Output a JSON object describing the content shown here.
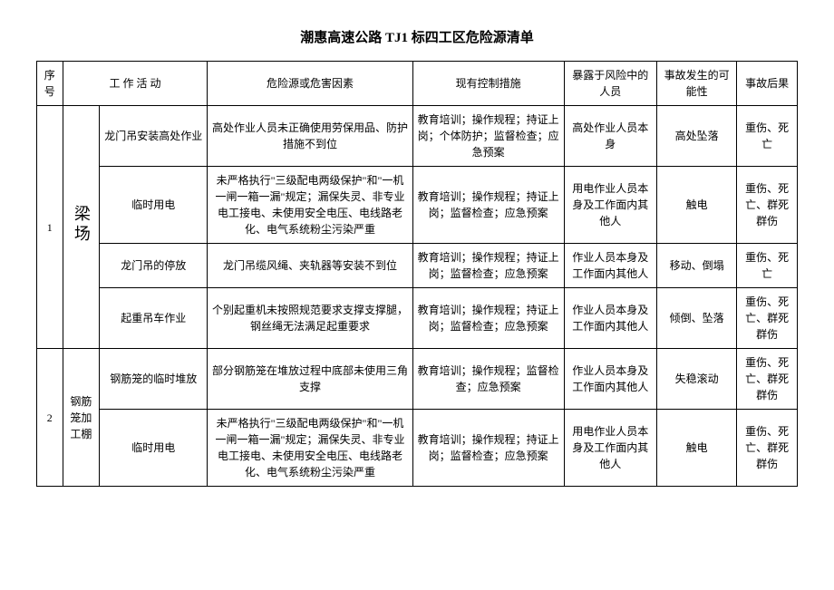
{
  "title": "潮惠高速公路 TJ1 标四工区危险源清单",
  "headers": {
    "seq": "序号",
    "activity": "工 作 活 动",
    "hazard": "危险源或危害因素",
    "control": "现有控制措施",
    "exposed": "暴露于风险中的人员",
    "possibility": "事故发生的可能性",
    "consequence": "事故后果"
  },
  "groups": [
    {
      "seq": "1",
      "category": "梁场",
      "rows": [
        {
          "activity": "龙门吊安装高处作业",
          "hazard": "高处作业人员未正确使用劳保用品、防护措施不到位",
          "control": "教育培训；操作规程；持证上岗；个体防护；监督检查；应急预案",
          "exposed": "高处作业人员本身",
          "possibility": "高处坠落",
          "consequence": "重伤、死亡"
        },
        {
          "activity": "临时用电",
          "hazard": "未严格执行\"三级配电两级保护\"和\"一机一闸一箱一漏\"规定；漏保失灵、非专业电工接电、未使用安全电压、电线路老化、电气系统粉尘污染严重",
          "control": "教育培训；操作规程；持证上岗；监督检查；应急预案",
          "exposed": "用电作业人员本身及工作面内其他人",
          "possibility": "触电",
          "consequence": "重伤、死亡、群死群伤"
        },
        {
          "activity": "龙门吊的停放",
          "hazard": "龙门吊缆风绳、夹轨器等安装不到位",
          "control": "教育培训；操作规程；持证上岗；监督检查；应急预案",
          "exposed": "作业人员本身及工作面内其他人",
          "possibility": "移动、倒塌",
          "consequence": "重伤、死亡"
        },
        {
          "activity": "起重吊车作业",
          "hazard": "个别起重机未按照规范要求支撑支撑腿，钢丝绳无法满足起重要求",
          "control": "教育培训；操作规程；持证上岗；监督检查；应急预案",
          "exposed": "作业人员本身及工作面内其他人",
          "possibility": "倾倒、坠落",
          "consequence": "重伤、死亡、群死群伤"
        }
      ]
    },
    {
      "seq": "2",
      "category": "钢筋笼加工棚",
      "rows": [
        {
          "activity": "钢筋笼的临时堆放",
          "hazard": "部分钢筋笼在堆放过程中底部未使用三角支撑",
          "control": "教育培训；操作规程；监督检查；应急预案",
          "exposed": "作业人员本身及工作面内其他人",
          "possibility": "失稳滚动",
          "consequence": "重伤、死亡、群死群伤"
        },
        {
          "activity": "临时用电",
          "hazard": "未严格执行\"三级配电两级保护\"和\"一机一闸一箱一漏\"规定；漏保失灵、非专业电工接电、未使用安全电压、电线路老化、电气系统粉尘污染严重",
          "control": "教育培训；操作规程；持证上岗；监督检查；应急预案",
          "exposed": "用电作业人员本身及工作面内其他人",
          "possibility": "触电",
          "consequence": "重伤、死亡、群死群伤"
        }
      ]
    }
  ]
}
